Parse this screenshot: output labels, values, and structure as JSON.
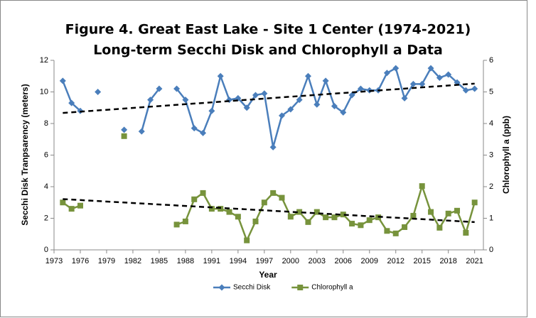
{
  "chart_data": {
    "type": "line",
    "title": [
      "Figure 4. Great East Lake - Site 1 Center (1974-2021)",
      "Long-term Secchi Disk and Chlorophyll a Data"
    ],
    "x_label": "Year",
    "y_label": "Secchi Disk Tranpsarency (meters)",
    "y2_label": "Chlorophyll a (ppb)",
    "x": [
      1974,
      1975,
      1976,
      1977,
      1978,
      1979,
      1980,
      1981,
      1982,
      1983,
      1984,
      1985,
      1986,
      1987,
      1988,
      1989,
      1990,
      1991,
      1992,
      1993,
      1994,
      1995,
      1996,
      1997,
      1998,
      1999,
      2000,
      2001,
      2002,
      2003,
      2004,
      2005,
      2006,
      2007,
      2008,
      2009,
      2010,
      2011,
      2012,
      2013,
      2014,
      2015,
      2016,
      2017,
      2018,
      2019,
      2020,
      2021
    ],
    "series": [
      {
        "name": "Secchi Disk",
        "color": "#4a7ebb",
        "marker": "diamond",
        "values": [
          10.7,
          9.3,
          8.8,
          null,
          10.0,
          null,
          null,
          7.6,
          null,
          7.5,
          9.5,
          10.2,
          null,
          10.2,
          9.5,
          7.7,
          7.4,
          8.8,
          11.0,
          9.5,
          9.6,
          9.0,
          9.8,
          9.9,
          6.5,
          8.5,
          8.9,
          9.5,
          11.0,
          9.2,
          10.7,
          9.1,
          8.7,
          9.8,
          10.2,
          10.1,
          10.1,
          11.2,
          11.5,
          9.6,
          10.5,
          10.5,
          11.5,
          10.9,
          11.1,
          10.6,
          10.1,
          10.2
        ]
      },
      {
        "name": "Chlorophyll a",
        "color": "#77933c",
        "marker": "square",
        "axis": "y2",
        "values": [
          1.5,
          1.3,
          1.4,
          null,
          null,
          null,
          null,
          3.6,
          null,
          null,
          null,
          null,
          null,
          0.8,
          0.9,
          1.6,
          1.8,
          1.3,
          1.3,
          1.2,
          1.05,
          0.3,
          0.9,
          1.5,
          1.8,
          1.65,
          1.05,
          1.2,
          0.88,
          1.2,
          1.03,
          1.03,
          1.12,
          0.83,
          0.78,
          0.94,
          1.03,
          0.6,
          0.52,
          0.72,
          1.08,
          2.02,
          1.2,
          0.7,
          1.15,
          1.24,
          0.54,
          1.5
        ]
      }
    ],
    "trendline": true,
    "xlim": [
      1973,
      2022
    ],
    "xticks": [
      1973,
      1976,
      1979,
      1982,
      1985,
      1988,
      1991,
      1994,
      1997,
      2000,
      2003,
      2006,
      2009,
      2012,
      2015,
      2018,
      2021
    ],
    "ylim": [
      0,
      12
    ],
    "yticks": [
      0,
      2,
      4,
      6,
      8,
      10,
      12
    ],
    "y2lim": [
      0,
      6
    ],
    "y2ticks": [
      0,
      1,
      2,
      3,
      4,
      5,
      6
    ],
    "legend": "bottom"
  }
}
